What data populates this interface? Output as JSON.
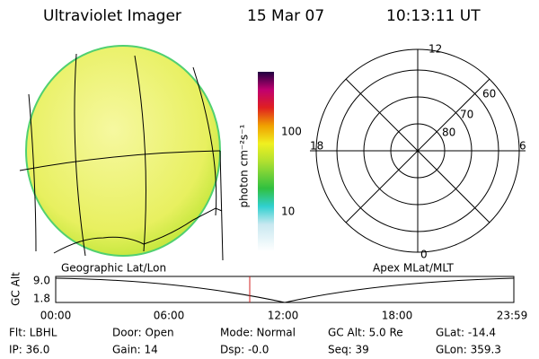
{
  "header": {
    "title": "Ultraviolet Imager",
    "date": "15 Mar 07",
    "time": "10:13:11 UT"
  },
  "colorbar": {
    "label": "photon cm⁻²s⁻¹",
    "ticks": [
      "100",
      "10"
    ]
  },
  "polar": {
    "mlt_labels": [
      "12",
      "18",
      "6",
      "0"
    ],
    "lat_labels": [
      "60",
      "70",
      "80"
    ]
  },
  "captions": {
    "left": "Geographic Lat/Lon",
    "right": "Apex MLat/MLT"
  },
  "altitude_plot": {
    "ylabel": "GC Alt",
    "yticks": [
      "9.0",
      "1.8"
    ],
    "xticks": [
      "00:00",
      "06:00",
      "12:00",
      "18:00",
      "23:59"
    ]
  },
  "footer": {
    "rows": [
      [
        "Flt: LBHL",
        "Door: Open",
        "Mode: Normal",
        "GC Alt: 5.0 Re",
        "GLat: -14.4"
      ],
      [
        "IP: 36.0",
        "Gain: 14",
        "Dsp: -0.0",
        "Seq: 39",
        "GLon: 359.3"
      ]
    ]
  }
}
